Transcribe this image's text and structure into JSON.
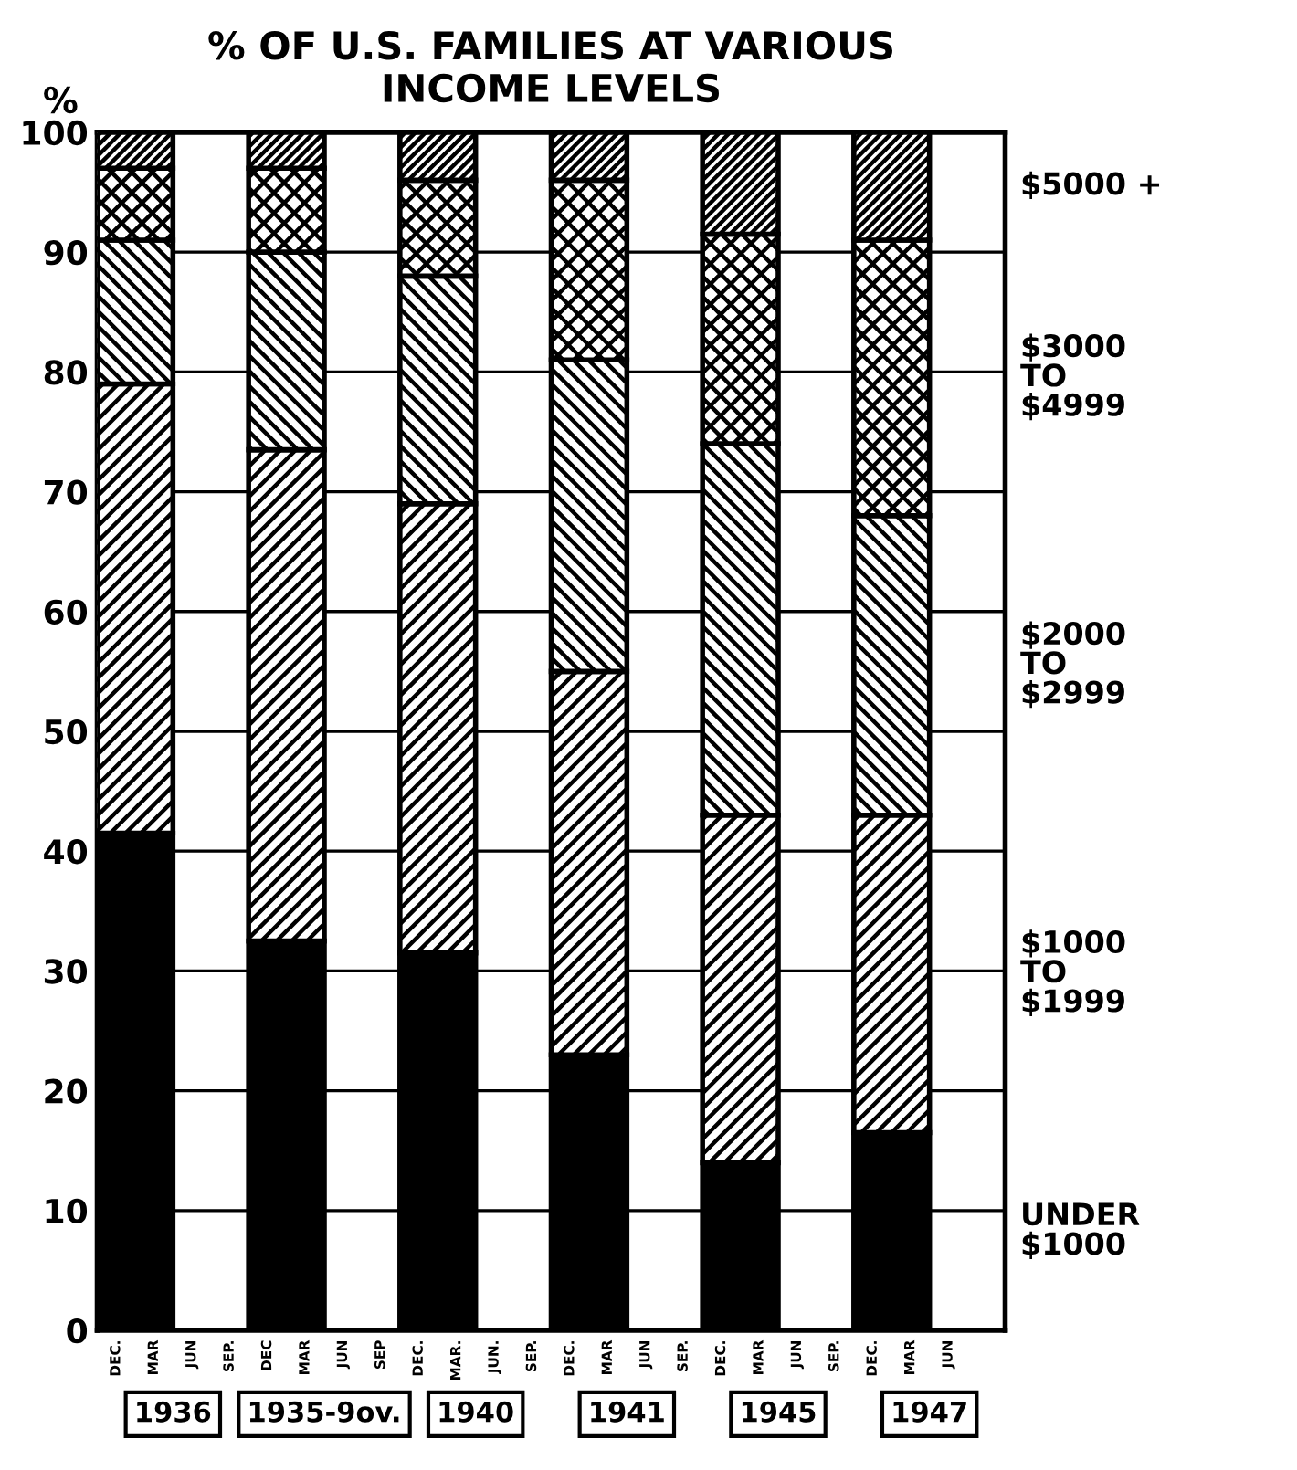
{
  "chart_data": {
    "type": "bar",
    "title": "% OF U.S. FAMILIES AT VARIOUS\nINCOME LEVELS",
    "ylabel": "%",
    "stacked": true,
    "categories": [
      "1936",
      "1935-9ov.",
      "1940",
      "1941",
      "1945",
      "1947"
    ],
    "series": [
      {
        "name": "UNDER\n$1000",
        "color": "#000000",
        "values": [
          41.5,
          32.5,
          31.5,
          23,
          14,
          16.5
        ]
      },
      {
        "name": "$1000\nTO\n$1999",
        "color": "#000000",
        "values": [
          37.5,
          41,
          37.5,
          32,
          29,
          26.5
        ]
      },
      {
        "name": "$2000\nTO\n$2999",
        "color": "#000000",
        "values": [
          12,
          16.5,
          19,
          26,
          31,
          25
        ]
      },
      {
        "name": "$3000\nTO\n$4999",
        "color": "#000000",
        "values": [
          6,
          7,
          8,
          15,
          17.5,
          23
        ]
      },
      {
        "name": "$5000 +",
        "color": "#000000",
        "values": [
          3,
          3,
          4,
          4,
          8.5,
          9
        ]
      }
    ],
    "ylim": [
      0,
      100
    ],
    "yticks": [
      0,
      10,
      20,
      30,
      40,
      50,
      60,
      70,
      80,
      90,
      100
    ],
    "grid": "y",
    "legend": "right",
    "annotations": [
      "DEC.",
      "MAR",
      "JUN",
      "SEP.",
      "DEC",
      "MAR",
      "JUN",
      "SEP",
      "DEC.",
      "MAR.",
      "JUN.",
      "SEP.",
      "DEC.",
      "MAR",
      "JUN",
      "SEP.",
      "DEC.",
      "MAR",
      "JUN",
      "SEP.",
      "DEC.",
      "MAR",
      "JUN"
    ]
  }
}
